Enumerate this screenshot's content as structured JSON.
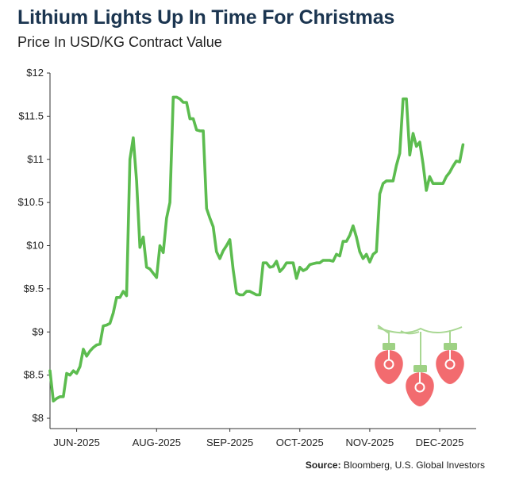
{
  "title": "Lithium Lights Up In Time For Christmas",
  "subtitle": "Price In USD/KG Contract Value",
  "source_label": "Source:",
  "source_text": "Bloomberg, U.S. Global Investors",
  "colors": {
    "line": "#5cbc4f",
    "title": "#1b3550",
    "bulb": "#f26b6f",
    "bulb_cap": "#9ed184"
  },
  "chart_data": {
    "type": "line",
    "title": "Lithium Lights Up In Time For Christmas",
    "subtitle": "Price In USD/KG Contract Value",
    "xlabel": "",
    "ylabel": "",
    "ylim": [
      8,
      12
    ],
    "y_ticks": [
      "$12",
      "$11.5",
      "$11",
      "$10.5",
      "$10",
      "$9.5",
      "$9",
      "$8.5",
      "$8"
    ],
    "y_tick_values": [
      12,
      11.5,
      11,
      10.5,
      10,
      9.5,
      9,
      8.5,
      8
    ],
    "x_ticks": [
      "JUN-2025",
      "AUG-2025",
      "SEP-2025",
      "OCT-2025",
      "NOV-2025",
      "DEC-2025"
    ],
    "x_tick_positions": [
      8,
      32,
      54,
      75,
      96,
      117
    ],
    "x_range": [
      0,
      127
    ],
    "grid": false,
    "series": [
      {
        "name": "",
        "values": [
          8.55,
          8.2,
          8.23,
          8.25,
          8.25,
          8.52,
          8.5,
          8.55,
          8.52,
          8.6,
          8.8,
          8.72,
          8.78,
          8.82,
          8.85,
          8.86,
          9.07,
          9.08,
          9.1,
          9.22,
          9.4,
          9.4,
          9.47,
          9.42,
          11.0,
          11.25,
          10.75,
          9.98,
          10.1,
          9.75,
          9.73,
          9.68,
          9.63,
          10.0,
          9.92,
          10.32,
          10.5,
          11.72,
          11.72,
          11.7,
          11.66,
          11.66,
          11.47,
          11.47,
          11.34,
          11.33,
          11.33,
          10.43,
          10.32,
          10.22,
          9.93,
          9.85,
          9.94,
          10.0,
          10.07,
          9.72,
          9.45,
          9.43,
          9.43,
          9.47,
          9.47,
          9.45,
          9.43,
          9.43,
          9.8,
          9.8,
          9.75,
          9.76,
          9.82,
          9.7,
          9.74,
          9.8,
          9.8,
          9.8,
          9.62,
          9.75,
          9.71,
          9.73,
          9.78,
          9.79,
          9.8,
          9.8,
          9.83,
          9.83,
          9.83,
          9.82,
          9.9,
          9.88,
          10.05,
          10.05,
          10.12,
          10.23,
          10.1,
          9.93,
          9.85,
          9.9,
          9.81,
          9.9,
          9.93,
          10.6,
          10.72,
          10.75,
          10.75,
          10.75,
          10.93,
          11.07,
          11.7,
          11.7,
          11.05,
          11.3,
          11.15,
          11.2,
          10.95,
          10.64,
          10.8,
          10.72,
          10.72,
          10.72,
          10.72,
          10.8,
          10.85,
          10.92,
          10.98,
          10.97,
          11.17
        ]
      }
    ]
  }
}
